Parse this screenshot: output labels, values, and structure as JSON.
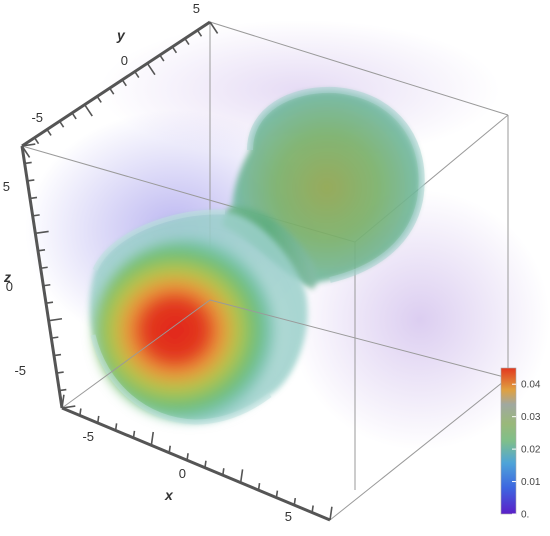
{
  "chart_data": {
    "type": "density-3d",
    "x_axis": {
      "label": "x",
      "ticks": [
        "-5",
        "0",
        "5"
      ],
      "range": [
        -7.5,
        7.5
      ]
    },
    "y_axis": {
      "label": "y",
      "ticks": [
        "-5",
        "0",
        "5"
      ],
      "range": [
        -7.5,
        7.5
      ]
    },
    "z_axis": {
      "label": "z",
      "ticks": [
        "-5",
        "0",
        "5"
      ],
      "range": [
        -7.5,
        7.5
      ]
    },
    "legend": {
      "placement": "bottom-right",
      "ticks": [
        "0.",
        "0.01",
        "0.02",
        "0.03",
        "0.04"
      ],
      "tick_values": [
        0,
        0.01,
        0.02,
        0.03,
        0.04
      ],
      "range": [
        0,
        0.045
      ],
      "colors": [
        "#5a1fc8",
        "#3d66e0",
        "#4fa4d8",
        "#7fbf8a",
        "#a8b85a",
        "#e0a040",
        "#e2381f"
      ]
    },
    "lobes": [
      {
        "position": "front",
        "peak_value": 0.045
      },
      {
        "position": "back",
        "peak_value": 0.03
      }
    ],
    "colors": {
      "box_edge": "#9a9a9a",
      "axis_frame": "#555555",
      "background_glow": "#a78ad8"
    }
  }
}
